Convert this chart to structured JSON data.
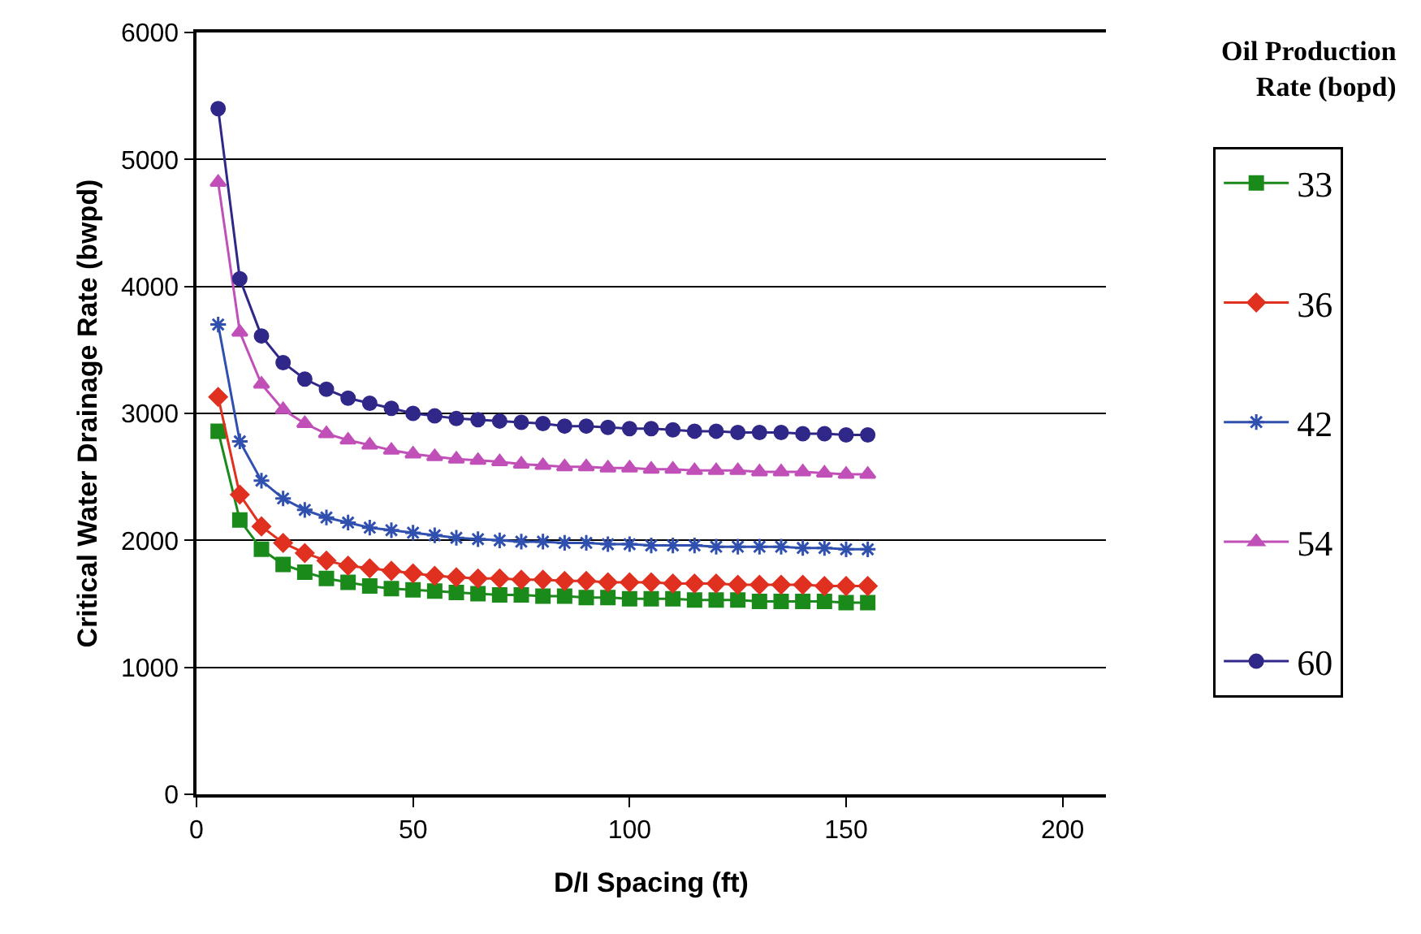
{
  "chart_data": {
    "type": "line",
    "xlabel": "D/I Spacing (ft)",
    "ylabel": "Critical Water Drainage Rate (bwpd)",
    "legend_title": "Oil Production Rate (bopd)",
    "x": [
      5,
      10,
      15,
      20,
      25,
      30,
      35,
      40,
      45,
      50,
      55,
      60,
      65,
      70,
      75,
      80,
      85,
      90,
      95,
      100,
      105,
      110,
      115,
      120,
      125,
      130,
      135,
      140,
      145,
      150,
      155
    ],
    "series": [
      {
        "name": "33",
        "color": "#1a8a1a",
        "marker": "square",
        "values": [
          2860,
          2160,
          1930,
          1810,
          1750,
          1700,
          1670,
          1640,
          1620,
          1610,
          1600,
          1590,
          1580,
          1570,
          1570,
          1560,
          1560,
          1550,
          1550,
          1540,
          1540,
          1540,
          1530,
          1530,
          1530,
          1520,
          1520,
          1520,
          1520,
          1510,
          1510
        ]
      },
      {
        "name": "36",
        "color": "#e03020",
        "marker": "diamond",
        "values": [
          3130,
          2360,
          2110,
          1980,
          1900,
          1840,
          1800,
          1780,
          1760,
          1740,
          1720,
          1710,
          1700,
          1700,
          1690,
          1690,
          1680,
          1680,
          1670,
          1670,
          1670,
          1660,
          1660,
          1660,
          1650,
          1650,
          1650,
          1650,
          1640,
          1640,
          1640
        ]
      },
      {
        "name": "42",
        "color": "#3050b0",
        "marker": "cross",
        "values": [
          3700,
          2780,
          2470,
          2330,
          2240,
          2180,
          2140,
          2100,
          2080,
          2060,
          2040,
          2020,
          2010,
          2000,
          1990,
          1990,
          1980,
          1980,
          1970,
          1970,
          1960,
          1960,
          1960,
          1950,
          1950,
          1950,
          1950,
          1940,
          1940,
          1930,
          1930
        ]
      },
      {
        "name": "54",
        "color": "#c050b8",
        "marker": "triangle",
        "values": [
          4820,
          3640,
          3230,
          3030,
          2920,
          2840,
          2790,
          2750,
          2710,
          2680,
          2660,
          2640,
          2630,
          2620,
          2600,
          2590,
          2580,
          2580,
          2570,
          2570,
          2560,
          2560,
          2550,
          2550,
          2550,
          2540,
          2540,
          2540,
          2530,
          2520,
          2520
        ]
      },
      {
        "name": "60",
        "color": "#302888",
        "marker": "circle",
        "values": [
          5400,
          4060,
          3610,
          3400,
          3270,
          3190,
          3120,
          3080,
          3040,
          3000,
          2980,
          2960,
          2950,
          2940,
          2930,
          2920,
          2900,
          2900,
          2890,
          2880,
          2880,
          2870,
          2860,
          2860,
          2850,
          2850,
          2850,
          2840,
          2840,
          2830,
          2830
        ]
      }
    ],
    "xlim": [
      0,
      210
    ],
    "xticks": [
      0,
      50,
      100,
      150,
      200
    ],
    "ylim": [
      0,
      6000
    ],
    "yticks": [
      0,
      1000,
      2000,
      3000,
      4000,
      5000,
      6000
    ],
    "grid": "y",
    "legend": "right",
    "line_style": "solid"
  }
}
